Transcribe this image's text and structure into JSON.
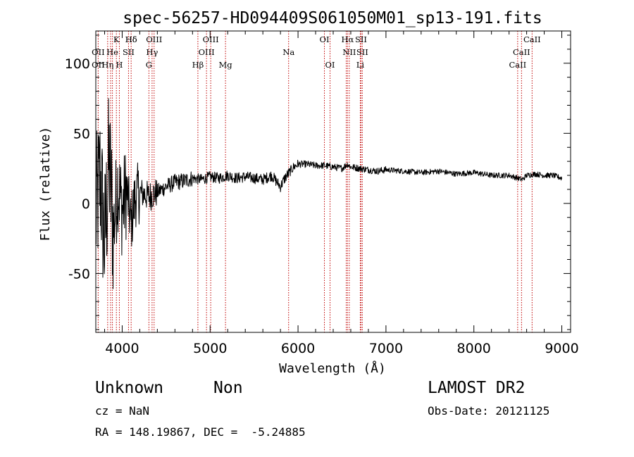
{
  "chart_data": {
    "type": "line",
    "title": "spec-56257-HD094409S061050M01_sp13-191.fits",
    "xlabel": "Wavelength (Å)",
    "ylabel": "Flux (relative)",
    "xlim": [
      3700,
      9100
    ],
    "ylim": [
      -92,
      123
    ],
    "xticks": [
      4000,
      5000,
      6000,
      7000,
      8000,
      9000
    ],
    "yticks": [
      -50,
      0,
      50,
      100
    ],
    "grid": false,
    "series": [
      {
        "x": [
          3700,
          3750,
          3800,
          3850,
          3900,
          3950,
          4000,
          4050,
          4100,
          4150,
          4200,
          4300,
          4400,
          4500,
          4600,
          4700,
          4800,
          4900,
          5000,
          5100,
          5200,
          5300,
          5400,
          5500,
          5600,
          5700,
          5800,
          5850,
          5900,
          5950,
          6000,
          6100,
          6200,
          6300,
          6400,
          6500,
          6563,
          6600,
          6700,
          6800,
          6900,
          7000,
          7200,
          7400,
          7600,
          7800,
          8000,
          8200,
          8400,
          8500,
          8550,
          8600,
          8700,
          8800,
          8900,
          9000
        ],
        "y": [
          -10,
          20,
          -30,
          30,
          -20,
          15,
          -5,
          10,
          -15,
          5,
          8,
          5,
          8,
          12,
          15,
          16,
          18,
          17,
          19,
          18,
          20,
          18,
          19,
          18,
          17,
          20,
          12,
          18,
          22,
          26,
          28,
          28,
          27,
          27,
          26,
          25,
          28,
          26,
          25,
          24,
          23,
          24,
          23,
          22,
          23,
          21,
          22,
          20,
          20,
          18,
          17,
          20,
          21,
          20,
          20,
          18
        ]
      }
    ],
    "line_markers": [
      {
        "label": "Hδ",
        "x": 4102,
        "row": 0
      },
      {
        "label": "K",
        "x": 3934,
        "row": 0
      },
      {
        "label": "Hδ",
        "x": 4102,
        "row": 0
      },
      {
        "label": "OIII",
        "x": 4363,
        "row": 0
      },
      {
        "label": "OIII",
        "x": 5007,
        "row": 0
      },
      {
        "label": "OI",
        "x": 6300,
        "row": 0
      },
      {
        "label": "Hα",
        "x": 6563,
        "row": 0
      },
      {
        "label": "SII",
        "x": 6716,
        "row": 0
      },
      {
        "label": "CaII",
        "x": 8662,
        "row": 0
      },
      {
        "label": "OII",
        "x": 3727,
        "row": 1
      },
      {
        "label": "He",
        "x": 3889,
        "row": 1
      },
      {
        "label": "SII",
        "x": 4072,
        "row": 1
      },
      {
        "label": "Hγ",
        "x": 4340,
        "row": 1
      },
      {
        "label": "OIII",
        "x": 4959,
        "row": 1
      },
      {
        "label": "Na",
        "x": 5893,
        "row": 1
      },
      {
        "label": "NII",
        "x": 6583,
        "row": 1
      },
      {
        "label": "SII",
        "x": 6731,
        "row": 1
      },
      {
        "label": "CaII",
        "x": 8542,
        "row": 1
      },
      {
        "label": "OII",
        "x": 3727,
        "row": 2
      },
      {
        "label": "Hη",
        "x": 3835,
        "row": 2
      },
      {
        "label": "H",
        "x": 3968,
        "row": 2
      },
      {
        "label": "G",
        "x": 4304,
        "row": 2
      },
      {
        "label": "Hβ",
        "x": 4861,
        "row": 2
      },
      {
        "label": "Mg",
        "x": 5175,
        "row": 2
      },
      {
        "label": "OI",
        "x": 6364,
        "row": 2
      },
      {
        "label": "Li",
        "x": 6708,
        "row": 2
      },
      {
        "label": "CaII",
        "x": 8498,
        "row": 2
      }
    ],
    "marker_lines": [
      3727,
      3835,
      3868,
      3889,
      3934,
      3968,
      4072,
      4102,
      4304,
      4340,
      4363,
      4861,
      4959,
      5007,
      5175,
      5893,
      6300,
      6364,
      6548,
      6563,
      6583,
      6708,
      6716,
      6731,
      8498,
      8542,
      8662
    ]
  },
  "info": {
    "class": "Unknown",
    "subclass": "Non",
    "survey": "LAMOST DR2",
    "cz": "cz = NaN",
    "obsdate": "Obs-Date: 20121125",
    "radec": "RA = 148.19867, DEC =  -5.24885"
  }
}
